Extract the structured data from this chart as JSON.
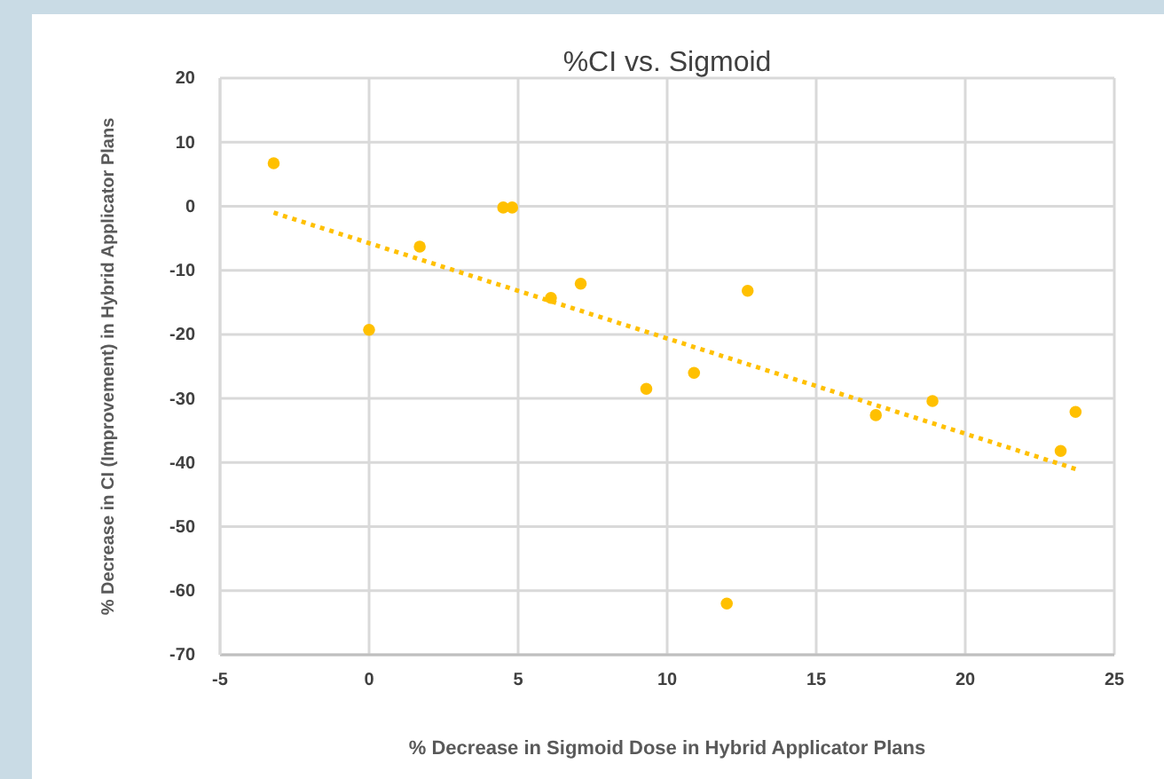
{
  "chart_data": {
    "type": "scatter",
    "title": "%CI vs. Sigmoid",
    "xlabel": "% Decrease in Sigmoid Dose in Hybrid Applicator Plans",
    "ylabel": "% Decrease in CI (Improvement) in Hybrid Applicator Plans",
    "xlim": [
      -5,
      25
    ],
    "xticks": [
      -5,
      0,
      5,
      10,
      15,
      20,
      25
    ],
    "ylim": [
      -70,
      20
    ],
    "yticks": [
      -70,
      -60,
      -50,
      -40,
      -30,
      -20,
      -10,
      0,
      10,
      20
    ],
    "grid": true,
    "series": [
      {
        "type": "scatter",
        "color": "#ffc000",
        "marker": "circle",
        "x": [
          -3.2,
          0,
          1.7,
          4.5,
          4.8,
          6.1,
          7.1,
          9.3,
          10.9,
          12,
          12.7,
          17,
          18.9,
          23.2,
          23.7
        ],
        "values": [
          6.7,
          -19.3,
          -6.3,
          -0.2,
          -0.2,
          -14.3,
          -12.1,
          -28.5,
          -26,
          -62,
          -13.2,
          -32.6,
          -30.4,
          -38.2,
          -32.1
        ]
      },
      {
        "type": "line",
        "color": "#ffc000",
        "line_style": "dotted",
        "marker": "none",
        "x": [
          -3.2,
          23.7
        ],
        "values": [
          -1,
          -41
        ]
      }
    ]
  }
}
